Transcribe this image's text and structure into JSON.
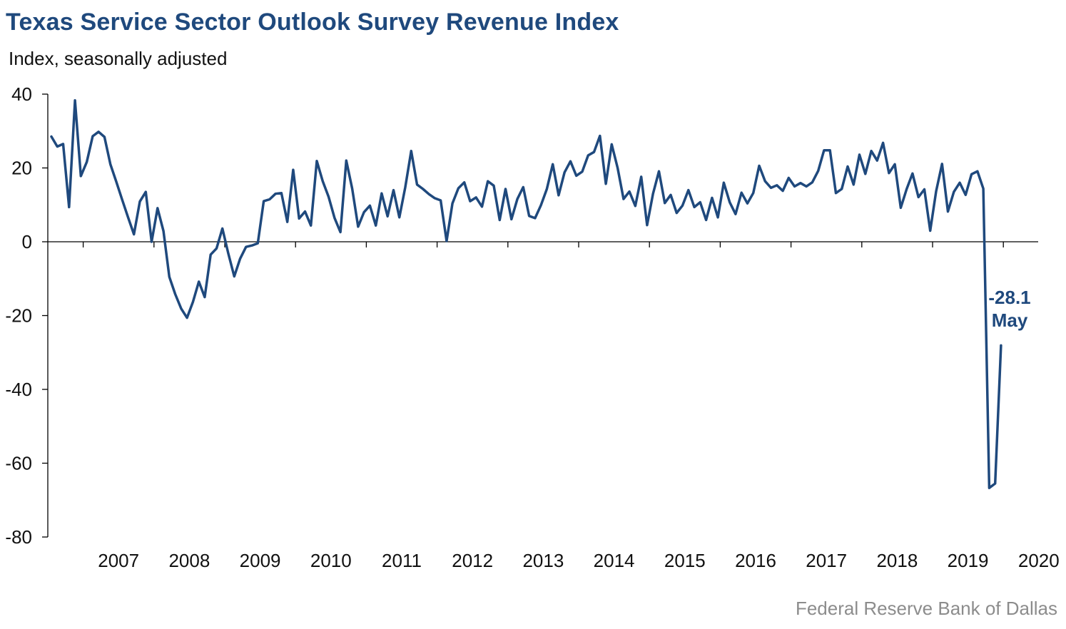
{
  "chart_data": {
    "type": "line",
    "title": "Texas Service Sector Outlook Survey Revenue Index",
    "subtitle": "Index, seasonally adjusted",
    "source": "Federal Reserve Bank of Dallas",
    "ylim": [
      -80,
      40
    ],
    "y_ticks": [
      40,
      20,
      0,
      -20,
      -40,
      -60,
      -80
    ],
    "x_tick_labels": [
      "2007",
      "2008",
      "2009",
      "2010",
      "2011",
      "2012",
      "2013",
      "2014",
      "2015",
      "2016",
      "2017",
      "2018",
      "2019",
      "2020"
    ],
    "x_start": "2006-07",
    "grid": false,
    "color": "#1f497d",
    "annotation": {
      "value": "-28.1",
      "label": "May"
    },
    "series": [
      {
        "values": [
          28.5,
          25.8,
          26.5,
          9.4,
          38.3,
          17.8,
          21.6,
          28.6,
          29.8,
          28.4,
          21.0,
          16.3,
          11.4,
          6.6,
          2.0,
          10.9,
          13.5,
          0.0,
          9.1,
          2.9,
          -9.5,
          -14.2,
          -18.1,
          -20.6,
          -16.3,
          -10.8,
          -15.0,
          -3.5,
          -1.8,
          3.6,
          -3.2,
          -9.4,
          -4.6,
          -1.4,
          -1.0,
          -0.4,
          11.0,
          11.5,
          13.0,
          13.2,
          5.4,
          19.5,
          6.3,
          8.2,
          4.4,
          21.9,
          16.4,
          12.2,
          6.5,
          2.6,
          22.0,
          14.4,
          4.1,
          8.0,
          9.8,
          4.4,
          13.1,
          6.9,
          14.0,
          6.6,
          14.8,
          24.6,
          15.5,
          14.3,
          12.9,
          11.8,
          11.2,
          0.2,
          10.4,
          14.5,
          16.1,
          11.0,
          12.0,
          9.5,
          16.4,
          15.2,
          5.9,
          14.3,
          6.1,
          11.6,
          14.8,
          7.0,
          6.4,
          9.9,
          14.3,
          21.0,
          12.6,
          18.8,
          21.8,
          17.9,
          19.0,
          23.4,
          24.3,
          28.7,
          15.7,
          26.4,
          20.0,
          11.6,
          13.6,
          9.7,
          17.6,
          4.5,
          13.0,
          19.1,
          10.5,
          12.7,
          7.8,
          9.8,
          14.0,
          9.4,
          10.7,
          5.9,
          11.9,
          6.6,
          16.0,
          10.7,
          7.5,
          13.3,
          10.4,
          13.2,
          20.6,
          16.4,
          14.6,
          15.3,
          13.8,
          17.3,
          15.0,
          15.9,
          15.0,
          16.1,
          19.2,
          24.8,
          24.8,
          13.2,
          14.3,
          20.4,
          15.5,
          23.6,
          18.4,
          24.6,
          22.0,
          26.8,
          18.6,
          21.0,
          9.2,
          14.3,
          18.5,
          12.1,
          14.2,
          3.0,
          13.7,
          21.1,
          8.2,
          13.5,
          16.0,
          12.7,
          18.3,
          19.1,
          14.4,
          -66.7,
          -65.5,
          -28.1
        ]
      }
    ]
  }
}
